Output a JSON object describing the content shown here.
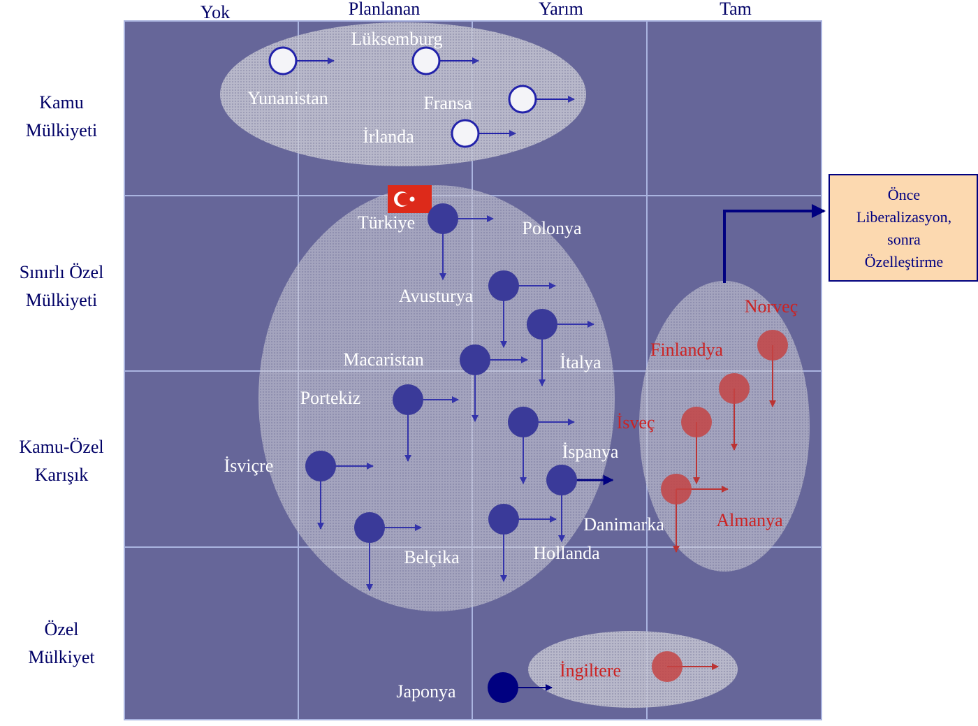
{
  "columns": [
    "Yok",
    "Planlanan",
    "Yarım",
    "Tam"
  ],
  "rows": [
    [
      "Kamu",
      "Mülkiyeti"
    ],
    [
      "Sınırlı Özel",
      "Mülkiyeti"
    ],
    [
      "Kamu-Özel",
      "Karışık"
    ],
    [
      "Özel",
      "Mülkiyet"
    ]
  ],
  "nodes": [
    {
      "label": "Yunanistan"
    },
    {
      "label": "Lüksemburg"
    },
    {
      "label": "Fransa"
    },
    {
      "label": "İrlanda"
    },
    {
      "label": "Türkiye"
    },
    {
      "label": "Polonya"
    },
    {
      "label": "Avusturya"
    },
    {
      "label": "İtalya"
    },
    {
      "label": "Macaristan"
    },
    {
      "label": "Portekiz"
    },
    {
      "label": "İspanya"
    },
    {
      "label": "İsviçre"
    },
    {
      "label": "Danimarka"
    },
    {
      "label": "Belçika"
    },
    {
      "label": "Hollanda"
    },
    {
      "label": "Japonya"
    },
    {
      "label": "Norveç"
    },
    {
      "label": "Finlandya"
    },
    {
      "label": "İsveç"
    },
    {
      "label": "Almanya"
    },
    {
      "label": "İngiltere"
    }
  ],
  "callout": {
    "lines": [
      "Önce",
      "Liberalizasyon,",
      "sonra",
      "Özelleştirme"
    ]
  }
}
